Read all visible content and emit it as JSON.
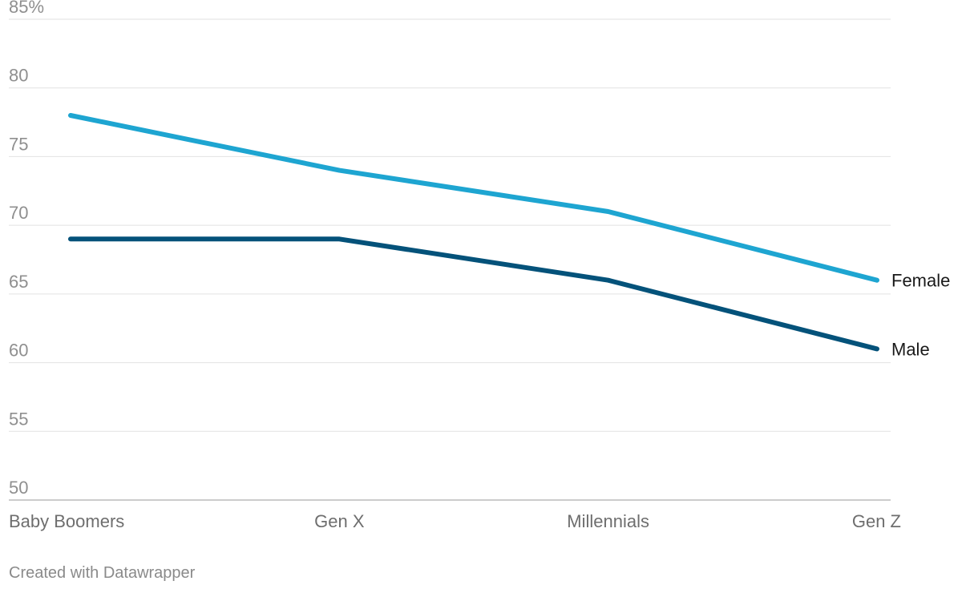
{
  "chart_data": {
    "type": "line",
    "categories": [
      "Baby Boomers",
      "Gen X",
      "Millennials",
      "Gen Z"
    ],
    "series": [
      {
        "name": "Female",
        "values": [
          78,
          74,
          71,
          66
        ],
        "color": "#1ea5d1"
      },
      {
        "name": "Male",
        "values": [
          69,
          69,
          66,
          61
        ],
        "color": "#04527a"
      }
    ],
    "y_ticks": [
      "85%",
      "80",
      "75",
      "70",
      "65",
      "60",
      "55",
      "50"
    ],
    "y_tick_values": [
      85,
      80,
      75,
      70,
      65,
      60,
      55,
      50
    ],
    "ylim": [
      50,
      85
    ],
    "grid": true,
    "legend": "inline-right"
  },
  "footer": {
    "credit": "Created with Datawrapper"
  }
}
